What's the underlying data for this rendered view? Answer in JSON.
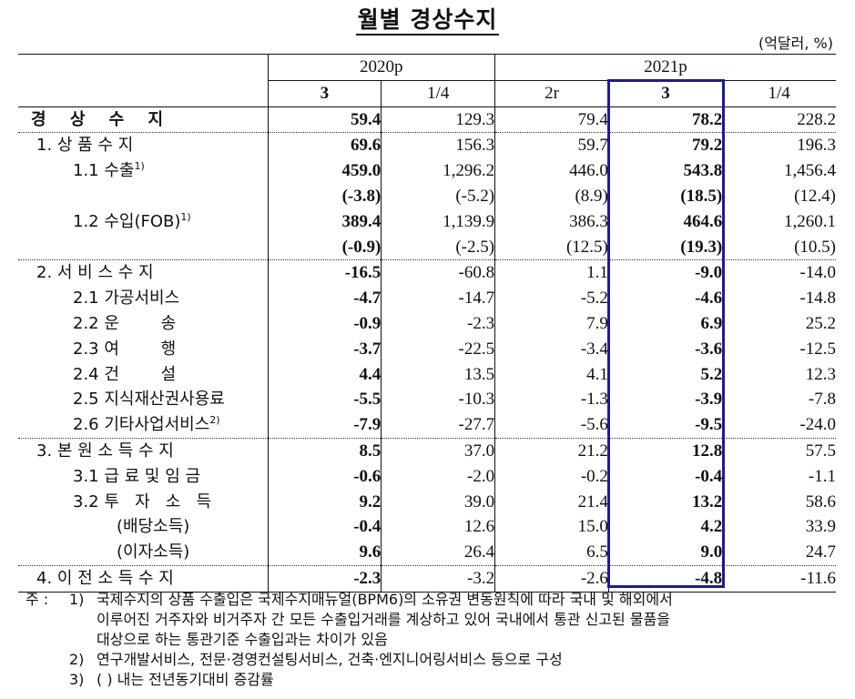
{
  "title": "월별 경상수지",
  "unit": "(억달러, %)",
  "highlight_color": "#1c1c8c",
  "header": {
    "groups": [
      {
        "label": "2020p",
        "span": 2
      },
      {
        "label": "2021p",
        "span": 3
      }
    ],
    "columns": [
      {
        "label": "3",
        "bold": true
      },
      {
        "label": "1/4",
        "bold": false
      },
      {
        "label": "2r",
        "bold": false
      },
      {
        "label": "3",
        "bold": true
      },
      {
        "label": "1/4",
        "bold": false
      }
    ]
  },
  "rows": [
    {
      "label": "경 상 수 지",
      "values": [
        "59.4",
        "129.3",
        "79.4",
        "78.2",
        "228.2"
      ]
    },
    {
      "label": "1. 상 품 수 지",
      "values": [
        "69.6",
        "156.3",
        "59.7",
        "79.2",
        "196.3"
      ]
    },
    {
      "label": "1.1 수출",
      "sup": "1)",
      "values": [
        "459.0",
        "1,296.2",
        "446.0",
        "543.8",
        "1,456.4"
      ]
    },
    {
      "label": "",
      "values": [
        "(-3.8)",
        "(-5.2)",
        "(8.9)",
        "(18.5)",
        "(12.4)"
      ]
    },
    {
      "label": "1.2 수입(FOB)",
      "sup": "1)",
      "values": [
        "389.4",
        "1,139.9",
        "386.3",
        "464.6",
        "1,260.1"
      ]
    },
    {
      "label": "",
      "values": [
        "(-0.9)",
        "(-2.5)",
        "(12.5)",
        "(19.3)",
        "(10.5)"
      ]
    },
    {
      "label": "2. 서 비 스 수 지",
      "values": [
        "-16.5",
        "-60.8",
        "1.1",
        "-9.0",
        "-14.0"
      ]
    },
    {
      "label": "2.1 가공서비스",
      "values": [
        "-4.7",
        "-14.7",
        "-5.2",
        "-4.6",
        "-14.8"
      ]
    },
    {
      "label": "2.2 운        송",
      "values": [
        "-0.9",
        "-2.3",
        "7.9",
        "6.9",
        "25.2"
      ]
    },
    {
      "label": "2.3 여        행",
      "values": [
        "-3.7",
        "-22.5",
        "-3.4",
        "-3.6",
        "-12.5"
      ]
    },
    {
      "label": "2.4 건        설",
      "values": [
        "4.4",
        "13.5",
        "4.1",
        "5.2",
        "12.3"
      ]
    },
    {
      "label": "2.5 지식재산권사용료",
      "values": [
        "-5.5",
        "-10.3",
        "-1.3",
        "-3.9",
        "-7.8"
      ]
    },
    {
      "label": "2.6 기타사업서비스",
      "sup": "2)",
      "values": [
        "-7.9",
        "-27.7",
        "-5.6",
        "-9.5",
        "-24.0"
      ]
    },
    {
      "label": "3. 본 원 소 득 수 지",
      "values": [
        "8.5",
        "37.0",
        "21.2",
        "12.8",
        "57.5"
      ]
    },
    {
      "label": "3.1 급 료 및 임 금",
      "values": [
        "-0.6",
        "-2.0",
        "-0.2",
        "-0.4",
        "-1.1"
      ]
    },
    {
      "label": "3.2 투   자   소   득",
      "values": [
        "9.2",
        "39.0",
        "21.4",
        "13.2",
        "58.6"
      ]
    },
    {
      "label": "(배당소득)",
      "values": [
        "-0.4",
        "12.6",
        "15.0",
        "4.2",
        "33.9"
      ]
    },
    {
      "label": "(이자소득)",
      "values": [
        "9.6",
        "26.4",
        "6.5",
        "9.0",
        "24.7"
      ]
    },
    {
      "label": "4. 이 전 소 득 수 지",
      "values": [
        "-2.3",
        "-3.2",
        "-2.6",
        "-4.8",
        "-11.6"
      ]
    }
  ],
  "notes": {
    "prefix": "주 :",
    "items": [
      {
        "num": "1)",
        "lines": [
          "국제수지의 상품 수출입은 국제수지매뉴얼(BPM6)의 소유권 변동원칙에 따라 국내 및 해외에서",
          "이루어진 거주자와 비거주자 간 모든 수출입거래를 계상하고 있어 국내에서 통관 신고된 물품을",
          "대상으로 하는 통관기준 수출입과는 차이가 있음"
        ]
      },
      {
        "num": "2)",
        "lines": [
          "연구개발서비스, 전문·경영컨설팅서비스, 건축·엔지니어링서비스 등으로 구성"
        ]
      },
      {
        "num": "3)",
        "lines": [
          "(   ) 내는 전년동기대비 증감률"
        ]
      }
    ]
  }
}
